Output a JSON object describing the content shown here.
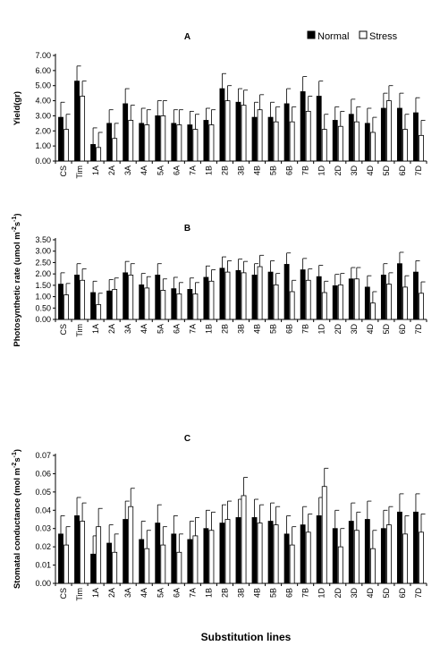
{
  "chart_data": [
    {
      "type": "bar",
      "panel": "A",
      "ylabel": "Yield(gr)",
      "ylim": [
        0,
        7
      ],
      "ytick_step": 1,
      "ytick_decimals": 2,
      "categories": [
        "CS",
        "Tim",
        "1A",
        "2A",
        "3A",
        "4A",
        "5A",
        "6A",
        "7A",
        "1B",
        "2B",
        "3B",
        "4B",
        "5B",
        "6B",
        "7B",
        "1D",
        "2D",
        "3D",
        "4D",
        "5D",
        "6D",
        "7D"
      ],
      "series": [
        {
          "name": "Normal",
          "values": [
            2.9,
            5.3,
            1.1,
            2.5,
            3.8,
            2.5,
            3.0,
            2.5,
            2.4,
            2.7,
            4.8,
            3.9,
            2.9,
            2.9,
            3.8,
            4.6,
            4.3,
            2.7,
            3.1,
            2.5,
            3.5,
            3.5,
            3.2
          ],
          "errors": [
            1.0,
            1.0,
            1.1,
            0.9,
            1.0,
            1.0,
            1.0,
            0.9,
            0.9,
            0.8,
            1.0,
            0.9,
            1.0,
            1.0,
            1.0,
            1.0,
            1.0,
            0.9,
            1.0,
            1.0,
            1.0,
            1.0,
            1.0
          ]
        },
        {
          "name": "Stress",
          "values": [
            2.1,
            4.3,
            0.9,
            1.5,
            2.7,
            2.4,
            3.0,
            2.4,
            2.1,
            2.4,
            4.0,
            3.7,
            3.4,
            2.6,
            2.6,
            3.3,
            2.1,
            2.3,
            2.6,
            1.9,
            4.0,
            2.1,
            1.7
          ],
          "errors": [
            1.0,
            1.0,
            1.0,
            1.0,
            1.0,
            1.0,
            1.0,
            1.0,
            1.0,
            1.0,
            1.0,
            1.0,
            1.0,
            1.0,
            1.0,
            1.0,
            1.0,
            1.0,
            1.0,
            1.0,
            1.0,
            1.0,
            1.0
          ]
        }
      ]
    },
    {
      "type": "bar",
      "panel": "B",
      "ylabel": "Photosynthetic rate (umol m-2s-1)",
      "ylim": [
        0,
        3.5
      ],
      "ytick_step": 0.5,
      "ytick_decimals": 2,
      "categories": [
        "CS",
        "Tim",
        "1A",
        "2A",
        "3A",
        "4A",
        "5A",
        "6A",
        "7A",
        "1B",
        "2B",
        "3B",
        "4B",
        "5B",
        "6B",
        "7B",
        "1D",
        "2D",
        "3D",
        "4D",
        "5D",
        "6D",
        "7D"
      ],
      "series": [
        {
          "name": "Normal",
          "values": [
            1.55,
            1.95,
            1.18,
            1.25,
            2.05,
            1.52,
            1.95,
            1.35,
            1.32,
            1.85,
            2.25,
            2.15,
            1.95,
            2.08,
            2.42,
            2.18,
            1.88,
            1.48,
            1.78,
            1.42,
            1.95,
            2.45,
            2.08
          ],
          "errors": [
            0.5,
            0.5,
            0.5,
            0.5,
            0.5,
            0.5,
            0.5,
            0.5,
            0.5,
            0.5,
            0.5,
            0.5,
            0.5,
            0.5,
            0.5,
            0.5,
            0.5,
            0.5,
            0.5,
            0.5,
            0.5,
            0.5,
            0.5
          ]
        },
        {
          "name": "Stress",
          "values": [
            1.08,
            1.72,
            0.65,
            1.32,
            1.95,
            1.38,
            1.28,
            1.12,
            1.12,
            1.68,
            2.08,
            2.05,
            2.32,
            1.52,
            1.22,
            1.72,
            1.18,
            1.52,
            1.78,
            0.72,
            1.55,
            1.42,
            1.15
          ],
          "errors": [
            0.5,
            0.5,
            0.5,
            0.5,
            0.5,
            0.5,
            0.5,
            0.5,
            0.5,
            0.5,
            0.5,
            0.5,
            0.5,
            0.5,
            0.5,
            0.5,
            0.5,
            0.5,
            0.5,
            0.5,
            0.5,
            0.5,
            0.5
          ]
        }
      ]
    },
    {
      "type": "bar",
      "panel": "C",
      "ylabel": "Stomatal conductance (mol m-2s-1)",
      "xlabel": "Substitution lines",
      "ylim": [
        0,
        0.07
      ],
      "ytick_step": 0.01,
      "ytick_decimals": 2,
      "categories": [
        "CS",
        "Tim",
        "1A",
        "2A",
        "3A",
        "4A",
        "5A",
        "6A",
        "7A",
        "1B",
        "2B",
        "3B",
        "4B",
        "5B",
        "6B",
        "7B",
        "1D",
        "2D",
        "3D",
        "4D",
        "5D",
        "6D",
        "7D"
      ],
      "series": [
        {
          "name": "Normal",
          "values": [
            0.027,
            0.037,
            0.016,
            0.022,
            0.035,
            0.024,
            0.033,
            0.027,
            0.024,
            0.03,
            0.033,
            0.036,
            0.036,
            0.034,
            0.027,
            0.032,
            0.037,
            0.03,
            0.034,
            0.035,
            0.03,
            0.039,
            0.039
          ],
          "errors": [
            0.01,
            0.01,
            0.01,
            0.01,
            0.01,
            0.01,
            0.01,
            0.01,
            0.01,
            0.01,
            0.01,
            0.01,
            0.01,
            0.01,
            0.01,
            0.01,
            0.01,
            0.01,
            0.01,
            0.01,
            0.01,
            0.01,
            0.01
          ]
        },
        {
          "name": "Stress",
          "values": [
            0.021,
            0.034,
            0.031,
            0.017,
            0.042,
            0.019,
            0.021,
            0.017,
            0.026,
            0.029,
            0.035,
            0.048,
            0.033,
            0.032,
            0.021,
            0.028,
            0.053,
            0.02,
            0.029,
            0.019,
            0.032,
            0.027,
            0.028
          ],
          "errors": [
            0.01,
            0.01,
            0.01,
            0.01,
            0.01,
            0.01,
            0.01,
            0.01,
            0.01,
            0.01,
            0.01,
            0.01,
            0.01,
            0.01,
            0.01,
            0.01,
            0.01,
            0.01,
            0.01,
            0.01,
            0.01,
            0.01,
            0.01
          ]
        }
      ]
    }
  ],
  "legend": {
    "normal": "Normal",
    "stress": "Stress",
    "placement": "top-right"
  },
  "colors": {
    "normal": "#000000",
    "stress": "#ffffff",
    "axis": "#000000"
  }
}
